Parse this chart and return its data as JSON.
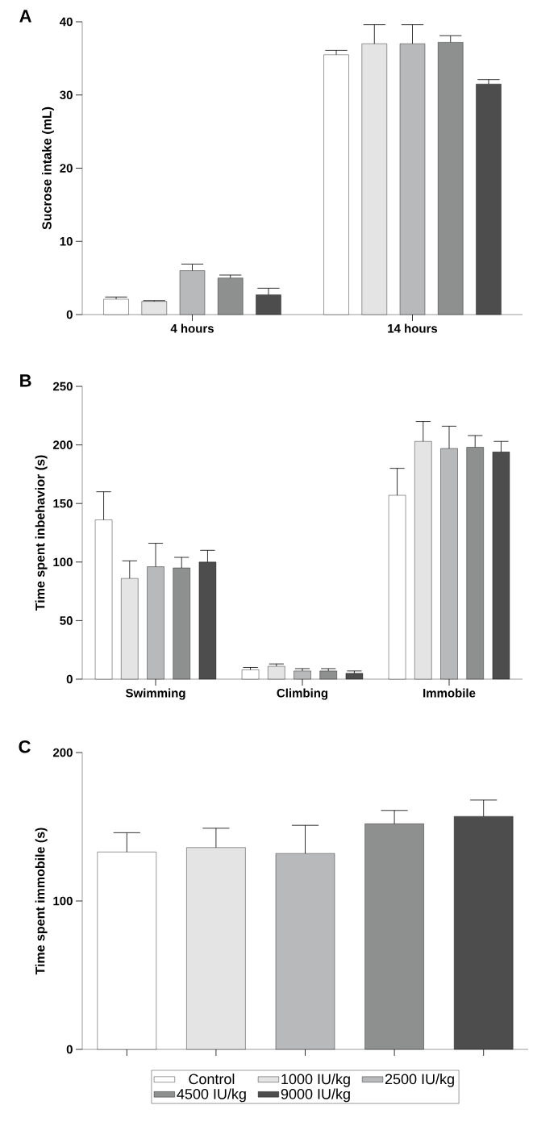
{
  "chart_data": [
    {
      "type": "bar",
      "title": "A",
      "ylabel": "Sucrose intake (mL)",
      "categories": [
        "4 hours",
        "14 hours"
      ],
      "ylim": [
        0,
        40
      ],
      "yticks": [
        0,
        10,
        20,
        30,
        40
      ],
      "series": [
        {
          "color": "#ffffff",
          "values": [
            2.1,
            35.5
          ],
          "errors": [
            [
              2.1,
              2.4
            ],
            [
              35.5,
              36.1
            ]
          ]
        },
        {
          "color": "#e4e4e4",
          "values": [
            1.8,
            37.0
          ],
          "errors": [
            [
              1.8,
              1.9
            ],
            [
              37.0,
              39.6
            ]
          ]
        },
        {
          "color": "#b8b9bb",
          "values": [
            6.0,
            37.0
          ],
          "errors": [
            [
              6.0,
              6.9
            ],
            [
              37.0,
              39.6
            ]
          ]
        },
        {
          "color": "#8e908f",
          "values": [
            5.0,
            37.2
          ],
          "errors": [
            [
              5.0,
              5.4
            ],
            [
              37.2,
              38.1
            ]
          ]
        },
        {
          "color": "#4d4d4d",
          "values": [
            2.7,
            31.5
          ],
          "errors": [
            [
              2.7,
              3.6
            ],
            [
              31.5,
              32.1
            ]
          ]
        }
      ]
    },
    {
      "type": "bar",
      "title": "B",
      "ylabel": "Time spent inbehavior (s)",
      "categories": [
        "Swimming",
        "Climbing",
        "Immobile"
      ],
      "ylim": [
        0,
        250
      ],
      "yticks": [
        0,
        50,
        100,
        150,
        200,
        250
      ],
      "series": [
        {
          "color": "#ffffff",
          "values": [
            136,
            8,
            157
          ],
          "errors": [
            [
              136,
              160
            ],
            [
              8,
              10
            ],
            [
              157,
              180
            ]
          ]
        },
        {
          "color": "#e4e4e4",
          "values": [
            86,
            11,
            203
          ],
          "errors": [
            [
              86,
              101
            ],
            [
              11,
              13
            ],
            [
              203,
              220
            ]
          ]
        },
        {
          "color": "#b8b9bb",
          "values": [
            96,
            7,
            197
          ],
          "errors": [
            [
              96,
              116
            ],
            [
              7,
              9
            ],
            [
              197,
              216
            ]
          ]
        },
        {
          "color": "#8e908f",
          "values": [
            95,
            7,
            198
          ],
          "errors": [
            [
              95,
              104
            ],
            [
              7,
              9
            ],
            [
              198,
              208
            ]
          ]
        },
        {
          "color": "#4d4d4d",
          "values": [
            100,
            5,
            194
          ],
          "errors": [
            [
              100,
              110
            ],
            [
              5,
              7
            ],
            [
              194,
              203
            ]
          ]
        }
      ]
    },
    {
      "type": "bar",
      "title": "C",
      "ylabel": "Time spent immobile (s)",
      "categories": [
        null,
        null,
        null,
        null,
        null
      ],
      "ylim": [
        0,
        200
      ],
      "yticks": [
        0,
        100,
        200
      ],
      "legend": "bottom",
      "series": [
        {
          "name": "Control",
          "color": "#ffffff",
          "values": [
            133,
            null,
            null,
            null,
            null
          ],
          "errors": [
            [
              133,
              146
            ],
            null,
            null,
            null,
            null
          ]
        },
        {
          "name": "1000 IU/kg",
          "color": "#e4e4e4",
          "values": [
            null,
            136,
            null,
            null,
            null
          ],
          "errors": [
            null,
            [
              136,
              149
            ],
            null,
            null,
            null
          ]
        },
        {
          "name": "2500 IU/kg",
          "color": "#b8b9bb",
          "values": [
            null,
            null,
            132,
            null,
            null
          ],
          "errors": [
            null,
            null,
            [
              132,
              151
            ],
            null,
            null
          ]
        },
        {
          "name": "4500 IU/kg",
          "color": "#8e908f",
          "values": [
            null,
            null,
            null,
            152,
            null
          ],
          "errors": [
            null,
            null,
            null,
            [
              152,
              161
            ],
            null
          ]
        },
        {
          "name": "9000 IU/kg",
          "color": "#4d4d4d",
          "values": [
            null,
            null,
            null,
            null,
            157
          ],
          "errors": [
            null,
            null,
            null,
            null,
            [
              157,
              168
            ]
          ]
        }
      ]
    }
  ]
}
